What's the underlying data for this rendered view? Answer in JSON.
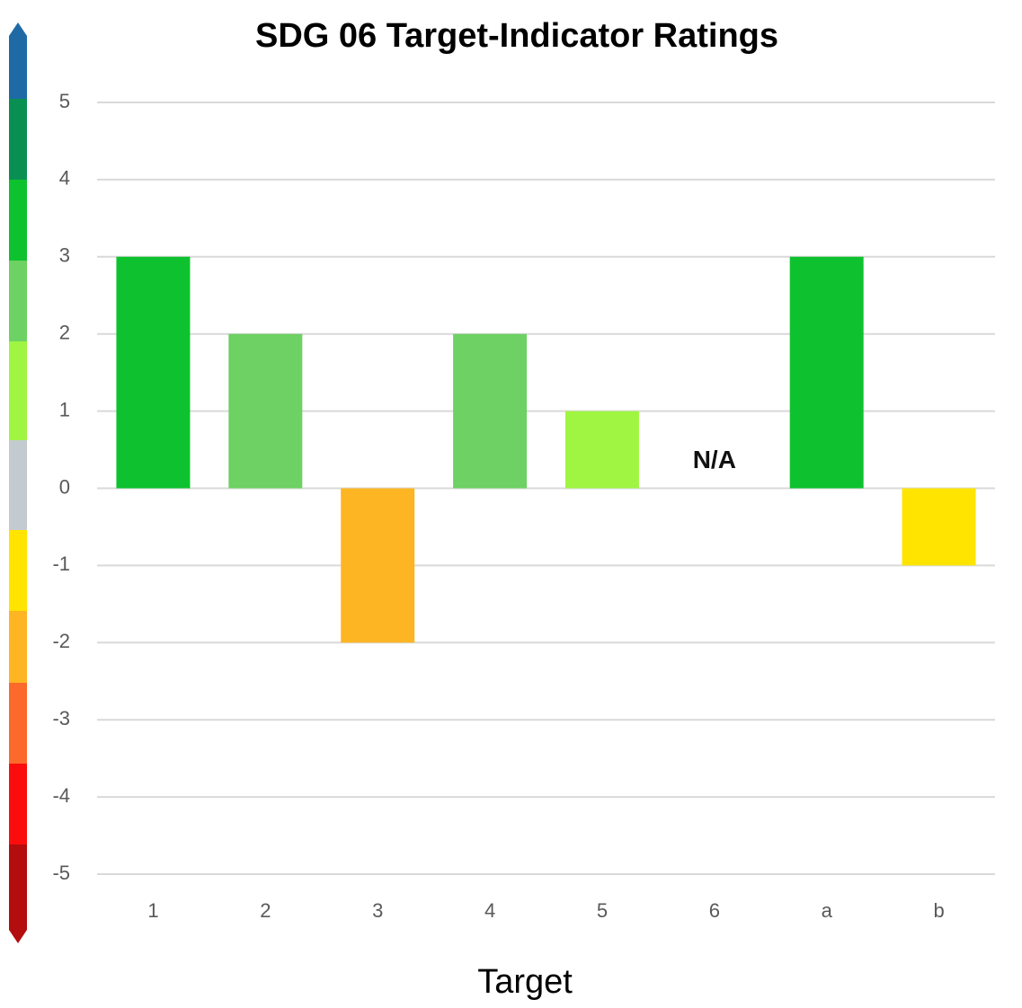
{
  "chart_data": {
    "type": "bar",
    "title": "SDG 06 Target-Indicator Ratings",
    "x_label": "Target",
    "categories": [
      "1",
      "2",
      "3",
      "4",
      "5",
      "6",
      "a",
      "b"
    ],
    "values": [
      3,
      2,
      -2,
      2,
      1,
      null,
      3,
      -1
    ],
    "colors": [
      "#0dc22e",
      "#6dd163",
      "#fdb523",
      "#6dd163",
      "#a0f542",
      null,
      "#0dc22e",
      "#ffe400"
    ],
    "annotations": [
      {
        "text": "N/A",
        "category": "6"
      }
    ],
    "ylim": [
      -5,
      5
    ],
    "yticks": [
      -5,
      -4,
      -3,
      -2,
      -1,
      0,
      1,
      2,
      3,
      4,
      5
    ],
    "grid": true
  }
}
